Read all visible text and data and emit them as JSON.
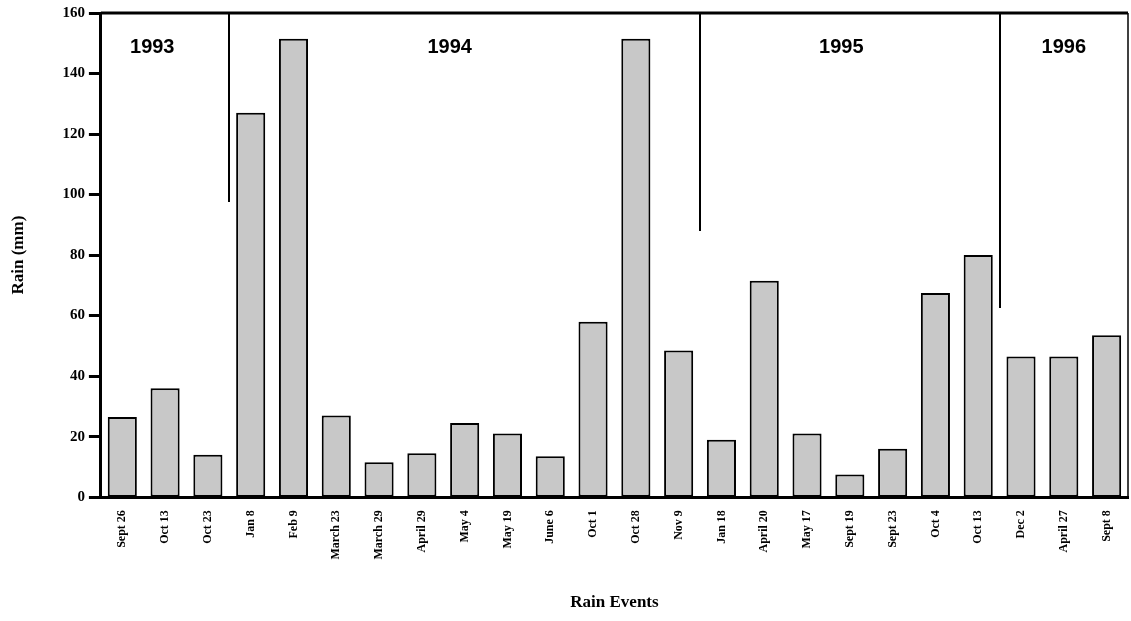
{
  "chart_data": {
    "type": "bar",
    "xlabel": "Rain Events",
    "ylabel": "Rain (mm)",
    "categories": [
      "Sept 26",
      "Oct 13",
      "Oct 23",
      "Jan 8",
      "Feb 9",
      "March 23",
      "March 29",
      "April 29",
      "May 4",
      "May 19",
      "June 6",
      "Oct 1",
      "Oct 28",
      "Nov 9",
      "Jan 18",
      "April 20",
      "May 17",
      "Sept 19",
      "Sept 23",
      "Oct 4",
      "Oct 13",
      "Dec 2",
      "April 27",
      "Sept 8"
    ],
    "values": [
      26.5,
      36,
      14,
      127,
      151.5,
      27,
      11.5,
      14.5,
      24.5,
      21,
      13.5,
      58,
      151.5,
      48.5,
      19,
      71.5,
      21,
      7.5,
      16,
      67.5,
      80,
      46.5,
      46.5,
      53.5
    ],
    "color": "#c8c8c8",
    "ylim": [
      0,
      160
    ],
    "yticks": [
      0,
      20,
      40,
      60,
      80,
      100,
      120,
      140,
      160
    ],
    "grid": false,
    "legend": false,
    "annotations": [
      "1993",
      "1994",
      "1995",
      "1996"
    ]
  }
}
